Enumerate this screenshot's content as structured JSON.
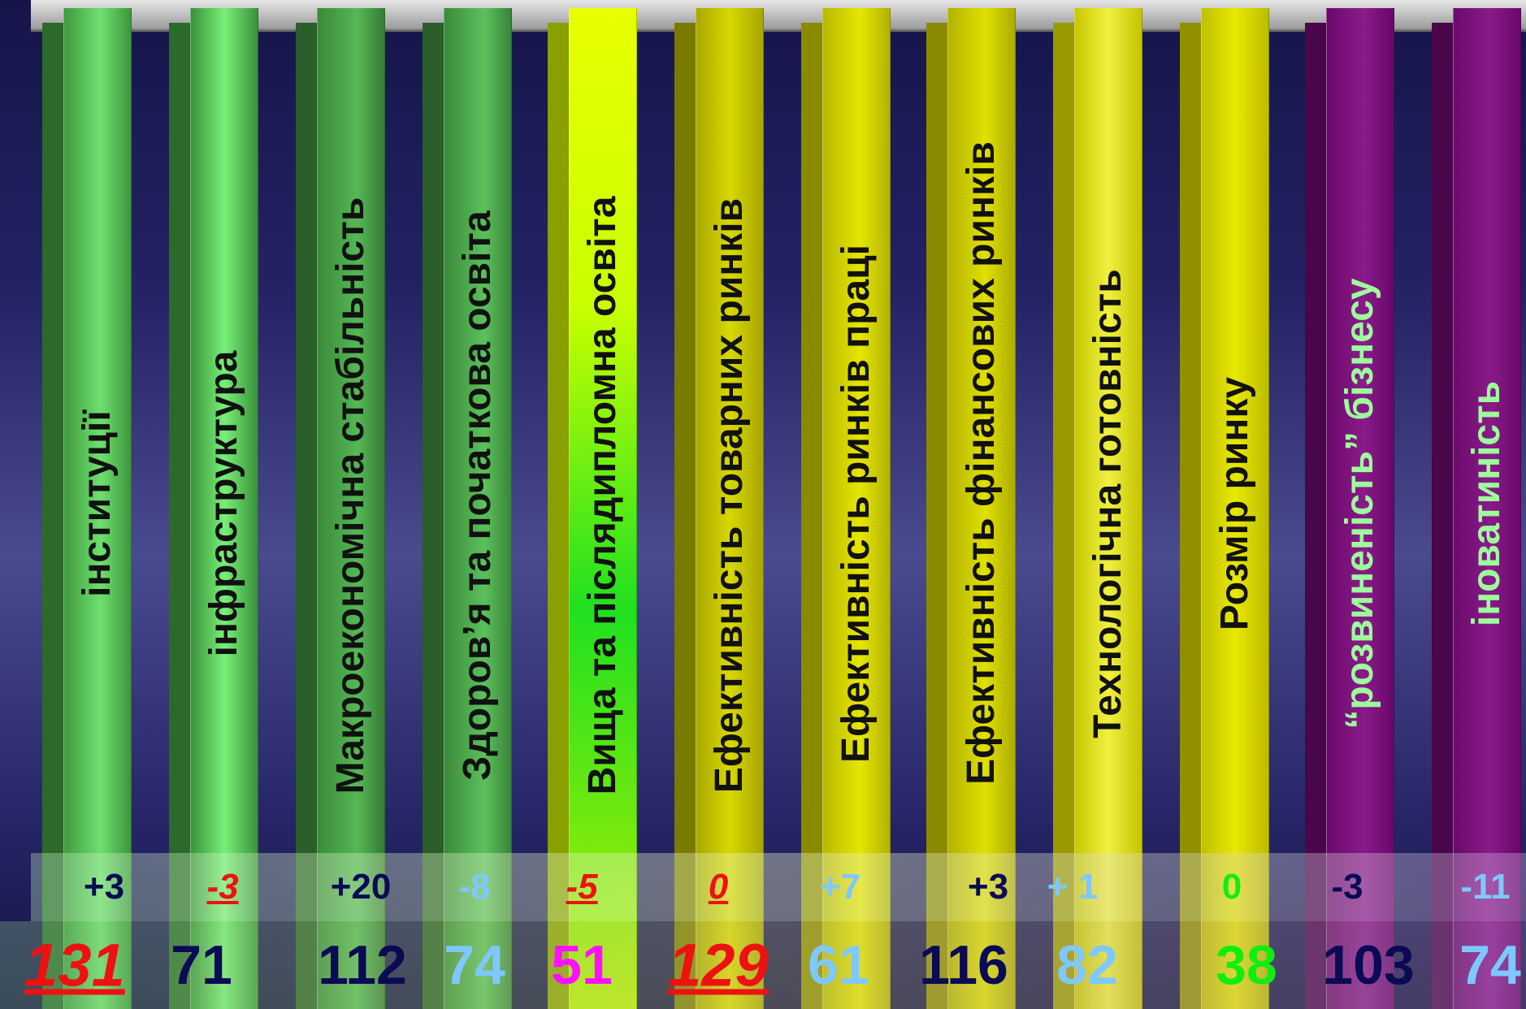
{
  "chart_data": {
    "type": "bar",
    "categories": [
      "інституції",
      "інфраструктура",
      "Макроекономічна стабільність",
      "Здоров’я та початкова освіта",
      "Вища та післядипломна освіта",
      "Ефективність товарних ринків",
      "Ефективність ринків праці",
      "Ефективність фінансових ринків",
      "Технологічна готовність",
      "Розмір ринку",
      "“розвиненість” бізнесу",
      "іноватиність"
    ],
    "changes": [
      "+3",
      "-3",
      "+20",
      "-8",
      "-5",
      "0",
      "+7",
      "+3",
      "+ 1",
      "0",
      "-3",
      "-11"
    ],
    "ranks": [
      "131",
      "71",
      "112",
      "74",
      "51",
      "129",
      "61",
      "116",
      "82",
      "38",
      "103",
      "74"
    ],
    "colors": {
      "bar_green": "#3f9a3f",
      "bar_bright": "#c8ff00",
      "bar_olive": "#b2b200",
      "bar_yellow": "#dede10",
      "bar_purple": "#7a0a7a",
      "rank_red": "#ee1111",
      "rank_navy": "#0a0a55",
      "rank_lightblue": "#7ec8ff",
      "rank_magenta": "#ff10ff",
      "rank_green": "#10ee10"
    }
  }
}
